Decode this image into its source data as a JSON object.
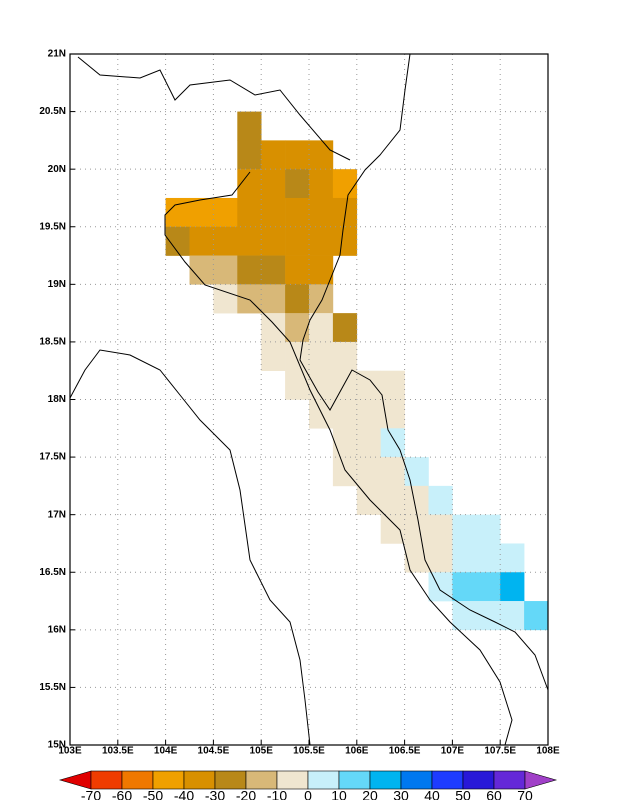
{
  "map": {
    "xlim": [
      103,
      108
    ],
    "ylim": [
      15,
      21
    ],
    "xticks": [
      {
        "value": 103,
        "label": "103E"
      },
      {
        "value": 103.5,
        "label": "103.5E"
      },
      {
        "value": 104,
        "label": "104E"
      },
      {
        "value": 104.5,
        "label": "104.5E"
      },
      {
        "value": 105,
        "label": "105E"
      },
      {
        "value": 105.5,
        "label": "105.5E"
      },
      {
        "value": 106,
        "label": "106E"
      },
      {
        "value": 106.5,
        "label": "106.5E"
      },
      {
        "value": 107,
        "label": "107E"
      },
      {
        "value": 107.5,
        "label": "107.5E"
      },
      {
        "value": 108,
        "label": "108E"
      }
    ],
    "yticks": [
      {
        "value": 15,
        "label": "15N"
      },
      {
        "value": 15.5,
        "label": "15.5N"
      },
      {
        "value": 16,
        "label": "16N"
      },
      {
        "value": 16.5,
        "label": "16.5N"
      },
      {
        "value": 17,
        "label": "17N"
      },
      {
        "value": 17.5,
        "label": "17.5N"
      },
      {
        "value": 18,
        "label": "18N"
      },
      {
        "value": 18.5,
        "label": "18.5N"
      },
      {
        "value": 19,
        "label": "19N"
      },
      {
        "value": 19.5,
        "label": "19.5N"
      },
      {
        "value": 20,
        "label": "20N"
      },
      {
        "value": 20.5,
        "label": "20.5N"
      },
      {
        "value": 21,
        "label": "21N"
      }
    ],
    "grid": true,
    "cell_size": 0.25,
    "levels": [
      -70,
      -60,
      -50,
      -40,
      -30,
      -20,
      -10,
      0,
      10,
      20,
      30,
      40,
      50,
      60,
      70
    ],
    "colors": [
      "#e00000",
      "#f03c00",
      "#f07800",
      "#f0a000",
      "#d89000",
      "#b88818",
      "#d8b878",
      "#f0e6d0",
      "#c8f0fa",
      "#64d8f8",
      "#00b4f0",
      "#0078f0",
      "#1e3cff",
      "#2818d8",
      "#6428d8",
      "#a040c8"
    ],
    "cells": [
      [
        104.75,
        20.25,
        -25
      ],
      [
        104.75,
        20.0,
        -25
      ],
      [
        105.0,
        20.0,
        -35
      ],
      [
        105.25,
        20.0,
        -35
      ],
      [
        105.5,
        20.0,
        -35
      ],
      [
        104.75,
        19.75,
        -35
      ],
      [
        105.0,
        19.75,
        -35
      ],
      [
        105.25,
        19.75,
        -25
      ],
      [
        105.5,
        19.75,
        -35
      ],
      [
        105.75,
        19.75,
        -45
      ],
      [
        104.0,
        19.5,
        -45
      ],
      [
        104.25,
        19.5,
        -45
      ],
      [
        104.5,
        19.5,
        -45
      ],
      [
        104.75,
        19.5,
        -35
      ],
      [
        105.0,
        19.5,
        -35
      ],
      [
        105.25,
        19.5,
        -35
      ],
      [
        105.5,
        19.5,
        -35
      ],
      [
        105.75,
        19.5,
        -35
      ],
      [
        104.0,
        19.25,
        -25
      ],
      [
        104.25,
        19.25,
        -35
      ],
      [
        104.5,
        19.25,
        -35
      ],
      [
        104.75,
        19.25,
        -35
      ],
      [
        105.0,
        19.25,
        -35
      ],
      [
        105.25,
        19.25,
        -35
      ],
      [
        105.5,
        19.25,
        -35
      ],
      [
        105.75,
        19.25,
        -35
      ],
      [
        104.25,
        19.0,
        -15
      ],
      [
        104.5,
        19.0,
        -15
      ],
      [
        104.75,
        19.0,
        -25
      ],
      [
        105.0,
        19.0,
        -25
      ],
      [
        105.25,
        19.0,
        -35
      ],
      [
        105.5,
        19.0,
        -35
      ],
      [
        104.5,
        18.75,
        -5
      ],
      [
        104.75,
        18.75,
        -15
      ],
      [
        105.0,
        18.75,
        -15
      ],
      [
        105.25,
        18.75,
        -25
      ],
      [
        105.5,
        18.75,
        -15
      ],
      [
        105.0,
        18.5,
        -5
      ],
      [
        105.25,
        18.5,
        -15
      ],
      [
        105.5,
        18.5,
        -5
      ],
      [
        105.75,
        18.5,
        -25
      ],
      [
        105.0,
        18.25,
        -5
      ],
      [
        105.25,
        18.25,
        -5
      ],
      [
        105.5,
        18.25,
        -5
      ],
      [
        105.75,
        18.25,
        -5
      ],
      [
        105.25,
        18.0,
        -5
      ],
      [
        105.5,
        18.0,
        -5
      ],
      [
        105.75,
        18.0,
        -5
      ],
      [
        106.0,
        18.0,
        -5
      ],
      [
        106.25,
        18.0,
        -5
      ],
      [
        105.5,
        17.75,
        -5
      ],
      [
        105.75,
        17.75,
        -5
      ],
      [
        106.0,
        17.75,
        -5
      ],
      [
        106.25,
        17.75,
        -5
      ],
      [
        105.75,
        17.5,
        -5
      ],
      [
        106.0,
        17.5,
        -5
      ],
      [
        106.25,
        17.5,
        5
      ],
      [
        105.75,
        17.25,
        -5
      ],
      [
        106.0,
        17.25,
        -5
      ],
      [
        106.25,
        17.25,
        -5
      ],
      [
        106.5,
        17.25,
        5
      ],
      [
        106.0,
        17.0,
        -5
      ],
      [
        106.25,
        17.0,
        -5
      ],
      [
        106.5,
        17.0,
        -5
      ],
      [
        106.75,
        17.0,
        5
      ],
      [
        106.25,
        16.75,
        -5
      ],
      [
        106.5,
        16.75,
        -5
      ],
      [
        106.75,
        16.75,
        -5
      ],
      [
        107.0,
        16.75,
        5
      ],
      [
        107.25,
        16.75,
        5
      ],
      [
        106.5,
        16.5,
        -5
      ],
      [
        106.75,
        16.5,
        -5
      ],
      [
        107.0,
        16.5,
        5
      ],
      [
        107.25,
        16.5,
        5
      ],
      [
        107.5,
        16.5,
        5
      ],
      [
        106.75,
        16.25,
        5
      ],
      [
        107.0,
        16.25,
        15
      ],
      [
        107.25,
        16.25,
        15
      ],
      [
        107.5,
        16.25,
        25
      ],
      [
        107.0,
        16.0,
        5
      ],
      [
        107.25,
        16.0,
        5
      ],
      [
        107.5,
        16.0,
        5
      ],
      [
        107.75,
        16.0,
        15
      ]
    ]
  }
}
